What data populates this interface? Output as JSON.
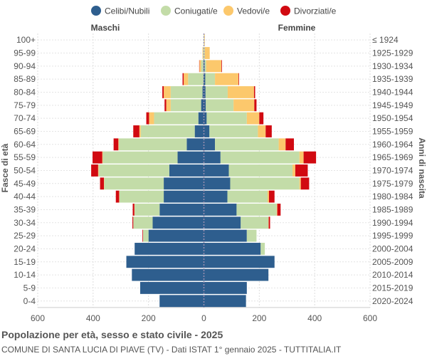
{
  "footer": {
    "title": "Popolazione per età, sesso e stato civile - 2025",
    "subtitle": "COMUNE DI SANTA LUCIA DI PIAVE (TV) - Dati ISTAT 1° gennaio 2025 - TUTTITALIA.IT"
  },
  "chart_data": {
    "type": "bar",
    "orientation": "horizontal-population-pyramid",
    "left_title": "Maschi",
    "right_title": "Femmine",
    "y_left_label": "Fasce di età",
    "y_right_label": "Anni di nascita",
    "xlim": [
      -600,
      600
    ],
    "x_ticks": [
      -600,
      -400,
      -200,
      0,
      200,
      400,
      600
    ],
    "x_tick_labels": [
      "600",
      "400",
      "200",
      "0",
      "200",
      "400",
      "600"
    ],
    "grid": true,
    "legend_position": "top",
    "series": [
      {
        "name": "Celibi/Nubili",
        "color": "#2e5e8e"
      },
      {
        "name": "Coniugati/e",
        "color": "#c3dca8"
      },
      {
        "name": "Vedovi/e",
        "color": "#fcc86c"
      },
      {
        "name": "Divorziati/e",
        "color": "#d10a11"
      }
    ],
    "categories": [
      "100+",
      "95-99",
      "90-94",
      "85-89",
      "80-84",
      "75-79",
      "70-74",
      "65-69",
      "60-64",
      "55-59",
      "50-54",
      "45-49",
      "40-44",
      "35-39",
      "30-34",
      "25-29",
      "20-24",
      "15-19",
      "10-14",
      "5-9",
      "0-4"
    ],
    "birth_years": [
      "≤ 1924",
      "1925-1929",
      "1930-1934",
      "1935-1939",
      "1940-1944",
      "1945-1949",
      "1950-1954",
      "1955-1959",
      "1960-1964",
      "1965-1969",
      "1970-1974",
      "1975-1979",
      "1980-1984",
      "1985-1989",
      "1990-1994",
      "1995-1999",
      "2000-2004",
      "2005-2009",
      "2010-2014",
      "2015-2019",
      "2020-2024"
    ],
    "males": [
      [
        0,
        1,
        0,
        0
      ],
      [
        0,
        3,
        2,
        0
      ],
      [
        2,
        8,
        6,
        1
      ],
      [
        2,
        55,
        16,
        4
      ],
      [
        5,
        115,
        25,
        5
      ],
      [
        10,
        110,
        16,
        6
      ],
      [
        20,
        160,
        18,
        10
      ],
      [
        33,
        195,
        5,
        22
      ],
      [
        62,
        245,
        2,
        17
      ],
      [
        95,
        270,
        2,
        35
      ],
      [
        125,
        255,
        2,
        25
      ],
      [
        145,
        215,
        1,
        14
      ],
      [
        145,
        160,
        1,
        12
      ],
      [
        160,
        90,
        1,
        6
      ],
      [
        185,
        70,
        0,
        3
      ],
      [
        200,
        20,
        0,
        2
      ],
      [
        250,
        0,
        0,
        0
      ],
      [
        280,
        0,
        0,
        0
      ],
      [
        260,
        0,
        0,
        0
      ],
      [
        230,
        0,
        0,
        0
      ],
      [
        160,
        0,
        0,
        0
      ]
    ],
    "females": [
      [
        0,
        1,
        2,
        0
      ],
      [
        0,
        3,
        18,
        0
      ],
      [
        3,
        5,
        55,
        2
      ],
      [
        5,
        35,
        85,
        2
      ],
      [
        6,
        80,
        95,
        4
      ],
      [
        7,
        100,
        75,
        8
      ],
      [
        10,
        145,
        45,
        15
      ],
      [
        20,
        175,
        28,
        22
      ],
      [
        40,
        230,
        25,
        30
      ],
      [
        60,
        285,
        15,
        45
      ],
      [
        90,
        230,
        10,
        45
      ],
      [
        95,
        250,
        5,
        30
      ],
      [
        85,
        145,
        5,
        20
      ],
      [
        118,
        145,
        2,
        12
      ],
      [
        133,
        100,
        1,
        5
      ],
      [
        155,
        35,
        0,
        0
      ],
      [
        205,
        15,
        0,
        0
      ],
      [
        255,
        0,
        0,
        0
      ],
      [
        233,
        0,
        0,
        0
      ],
      [
        155,
        0,
        0,
        0
      ],
      [
        152,
        0,
        0,
        0
      ]
    ]
  }
}
